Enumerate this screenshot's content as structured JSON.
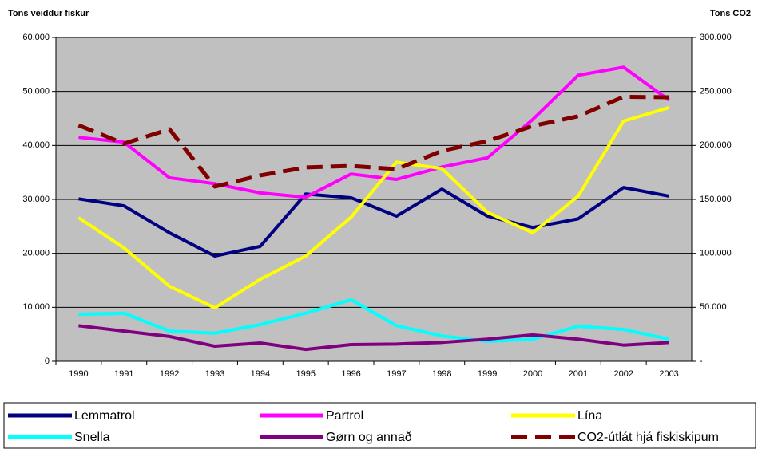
{
  "chart_data": {
    "type": "line",
    "y_label": "Tons veiddur fiskur",
    "y2_label": "Tons CO2",
    "categories": [
      "1990",
      "1991",
      "1992",
      "1993",
      "1994",
      "1995",
      "1996",
      "1997",
      "1998",
      "1999",
      "2000",
      "2001",
      "2002",
      "2003"
    ],
    "series": [
      {
        "name": "Lemmatrol",
        "color": "#000080",
        "values": [
          30100,
          28800,
          23800,
          19500,
          21300,
          31000,
          30300,
          26900,
          31900,
          26900,
          24800,
          26400,
          32200,
          30600
        ]
      },
      {
        "name": "Partrol",
        "color": "#ff00ff",
        "values": [
          41500,
          40600,
          34000,
          32900,
          31200,
          30400,
          34700,
          33700,
          36000,
          37700,
          44800,
          53000,
          54500,
          48400
        ]
      },
      {
        "name": "Lína",
        "color": "#ffff00",
        "values": [
          26600,
          21000,
          13900,
          9900,
          15200,
          19500,
          26700,
          36900,
          35700,
          27600,
          23800,
          30600,
          44500,
          47000
        ]
      },
      {
        "name": "Snella",
        "color": "#00ffff",
        "values": [
          8700,
          8900,
          5600,
          5200,
          6800,
          8900,
          11400,
          6600,
          4700,
          3700,
          4100,
          6500,
          5900,
          4100
        ]
      },
      {
        "name": "Gørn og annað",
        "color": "#800080",
        "values": [
          6600,
          5600,
          4600,
          2800,
          3400,
          2200,
          3100,
          3200,
          3500,
          4100,
          4900,
          4100,
          3000,
          3500
        ]
      },
      {
        "name": "CO2-útlát hjá fiskiskipum",
        "color": "#800000",
        "axis": "y2",
        "dashed": true,
        "values": [
          218700,
          201700,
          215000,
          161900,
          172200,
          179600,
          181000,
          178000,
          195000,
          204000,
          218000,
          227000,
          245000,
          244600
        ]
      }
    ],
    "ylim": [
      0,
      60000
    ],
    "yticks": [
      0,
      {
        "value": 10000,
        "label": "10.000"
      },
      {
        "value": 20000,
        "label": "20.000"
      },
      {
        "value": 30000,
        "label": "30.000"
      },
      {
        "value": 40000,
        "label": "40.000"
      },
      {
        "value": 50000,
        "label": "50.000"
      },
      {
        "value": 60000,
        "label": "60.000"
      }
    ],
    "y2lim": [
      0,
      300000
    ],
    "y2ticks": [
      {
        "value": 0,
        "label": "-"
      },
      {
        "value": 50000,
        "label": "50.000"
      },
      {
        "value": 100000,
        "label": "100.000"
      },
      {
        "value": 150000,
        "label": "150.000"
      },
      {
        "value": 200000,
        "label": "200.000"
      },
      {
        "value": 250000,
        "label": "250.000"
      },
      {
        "value": 300000,
        "label": "300.000"
      }
    ],
    "grid": true
  }
}
